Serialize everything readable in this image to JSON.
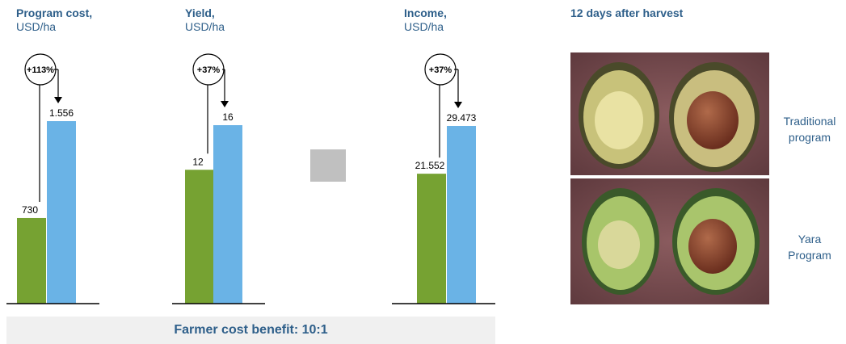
{
  "chart_data": [
    {
      "type": "bar",
      "title": "Program cost,",
      "unit": "USD/ha",
      "series": [
        {
          "name": "",
          "color": "#76a232",
          "value": 730,
          "label": "730"
        },
        {
          "name": "",
          "color": "#6ab3e6",
          "value": 1556,
          "label": "1.556"
        }
      ],
      "change_label": "+113%"
    },
    {
      "type": "bar",
      "title": "Yield,",
      "unit": "USD/ha",
      "series": [
        {
          "name": "",
          "color": "#76a232",
          "value": 12,
          "label": "12"
        },
        {
          "name": "",
          "color": "#6ab3e6",
          "value": 16,
          "label": "16"
        }
      ],
      "change_label": "+37%"
    },
    {
      "type": "bar",
      "title": "Income,",
      "unit": "USD/ha",
      "series": [
        {
          "name": "",
          "color": "#76a232",
          "value": 21552,
          "label": "21.552"
        },
        {
          "name": "",
          "color": "#6ab3e6",
          "value": 29473,
          "label": "29.473"
        }
      ],
      "change_label": "+37%"
    }
  ],
  "photo": {
    "title": "12 days after harvest",
    "top_label_line1": "Traditional",
    "top_label_line2": "program",
    "bottom_label_line1": "Yara",
    "bottom_label_line2": "Program"
  },
  "footer": {
    "benefit_text": "Farmer cost benefit: 10:1"
  },
  "colors": {
    "title": "#2e5f8a",
    "green": "#76a232",
    "blue": "#6ab3e6",
    "footer_bg": "#f0f0f0",
    "gray_square": "#c0c0c0"
  }
}
